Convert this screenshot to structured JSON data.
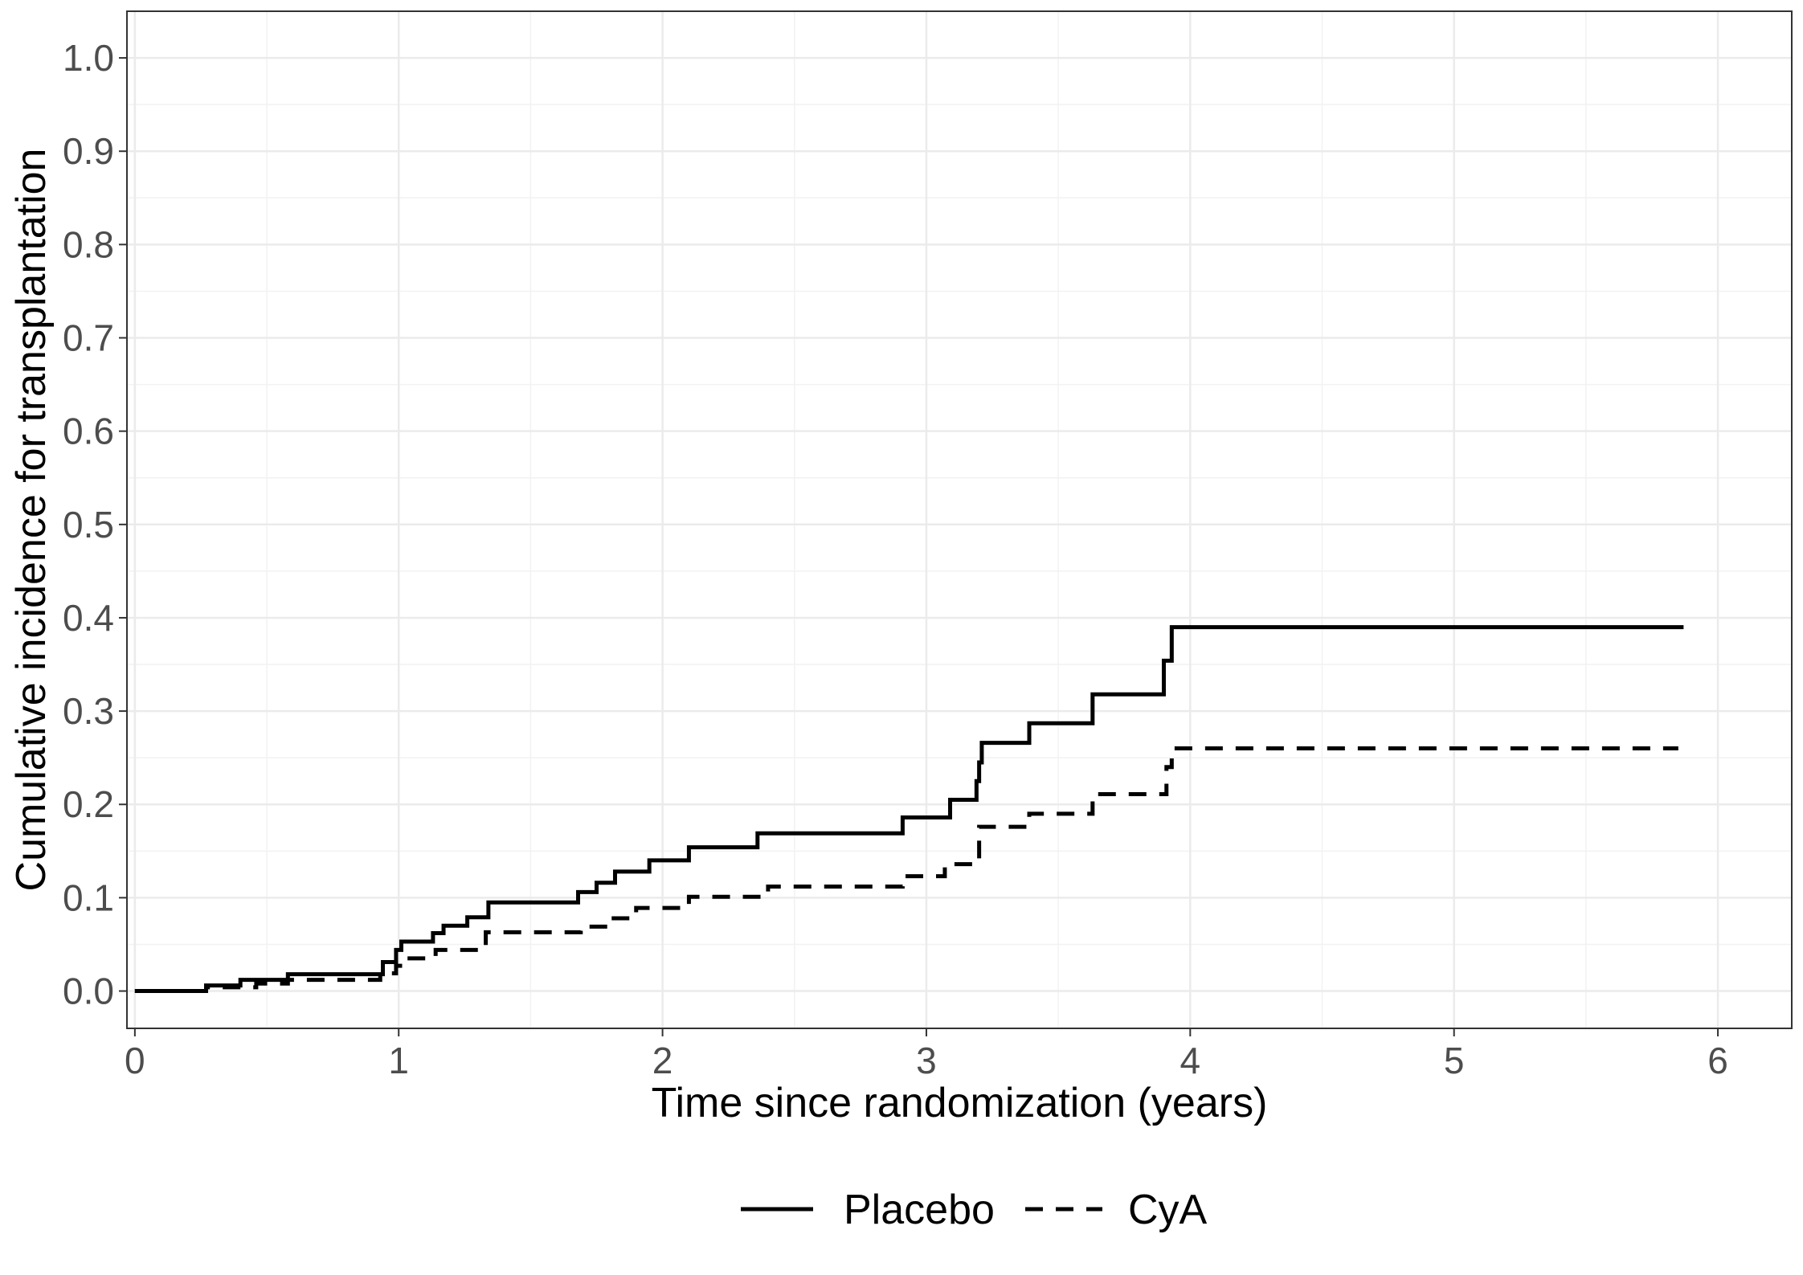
{
  "chart_data": {
    "type": "line",
    "step": true,
    "xlabel": "Time since randomization (years)",
    "ylabel": "Cumulative incidence for transplantation",
    "xlim": [
      -0.03,
      6.28
    ],
    "ylim": [
      -0.04,
      1.05
    ],
    "xticks": [
      0,
      1,
      2,
      3,
      4,
      5,
      6
    ],
    "xtick_labels": [
      "0",
      "1",
      "2",
      "3",
      "4",
      "5",
      "6"
    ],
    "yticks": [
      0.0,
      0.1,
      0.2,
      0.3,
      0.4,
      0.5,
      0.6,
      0.7,
      0.8,
      0.9,
      1.0
    ],
    "ytick_labels": [
      "0.0",
      "0.1",
      "0.2",
      "0.3",
      "0.4",
      "0.5",
      "0.6",
      "0.7",
      "0.8",
      "0.9",
      "1.0"
    ],
    "grid": true,
    "legend_position": "bottom",
    "series": [
      {
        "name": "Placebo",
        "line_style": "solid",
        "color": "#000000",
        "x": [
          0,
          0.27,
          0.4,
          0.58,
          0.94,
          0.99,
          1.01,
          1.13,
          1.17,
          1.26,
          1.34,
          1.68,
          1.75,
          1.82,
          1.95,
          2.1,
          2.36,
          2.91,
          3.09,
          3.19,
          3.2,
          3.21,
          3.39,
          3.63,
          3.9,
          3.93,
          5.87
        ],
        "y": [
          0,
          0.006,
          0.012,
          0.018,
          0.031,
          0.044,
          0.053,
          0.062,
          0.07,
          0.079,
          0.095,
          0.106,
          0.116,
          0.128,
          0.14,
          0.154,
          0.169,
          0.186,
          0.205,
          0.225,
          0.245,
          0.266,
          0.287,
          0.318,
          0.354,
          0.39,
          0.39
        ]
      },
      {
        "name": "CyA",
        "line_style": "dashed",
        "color": "#000000",
        "x": [
          0,
          0.27,
          0.46,
          0.58,
          0.93,
          0.99,
          1.02,
          1.14,
          1.33,
          1.69,
          1.8,
          1.9,
          2.1,
          2.4,
          2.91,
          3.07,
          3.2,
          3.39,
          3.63,
          3.91,
          3.93,
          5.85
        ],
        "y": [
          0,
          0.004,
          0.008,
          0.012,
          0.019,
          0.027,
          0.035,
          0.044,
          0.063,
          0.069,
          0.078,
          0.089,
          0.101,
          0.112,
          0.123,
          0.136,
          0.176,
          0.19,
          0.211,
          0.24,
          0.26,
          0.26
        ]
      }
    ]
  }
}
